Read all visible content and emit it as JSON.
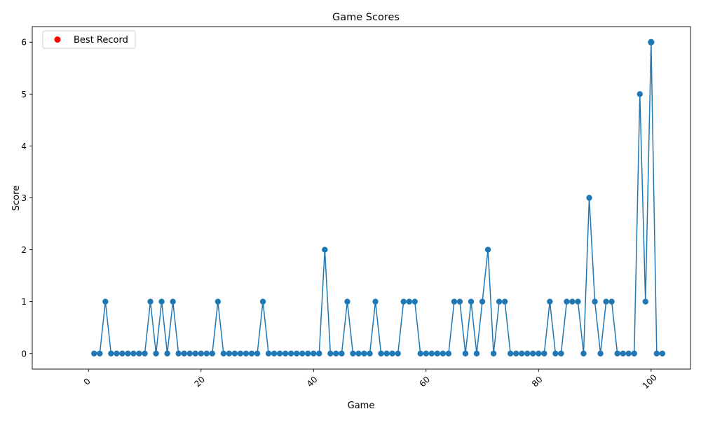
{
  "chart_data": {
    "type": "line",
    "title": "Game Scores",
    "xlabel": "Game",
    "ylabel": "Score",
    "xlim": [
      -10,
      107
    ],
    "ylim": [
      -0.3,
      6.3
    ],
    "x_ticks": [
      0,
      20,
      40,
      60,
      80,
      100
    ],
    "x_tick_labels": [
      "0",
      "20",
      "40",
      "60",
      "80",
      "100"
    ],
    "y_ticks": [
      0,
      1,
      2,
      3,
      4,
      5,
      6
    ],
    "y_tick_labels": [
      "0",
      "1",
      "2",
      "3",
      "4",
      "5",
      "6"
    ],
    "grid": false,
    "legend": {
      "placement": "top-left",
      "entries": [
        "Best Record"
      ]
    },
    "colors": {
      "series": "#1f77b4",
      "best_record": "#ff0000"
    },
    "series": [
      {
        "x": [
          1,
          2,
          3,
          4,
          5,
          6,
          7,
          8,
          9,
          10,
          11,
          12,
          13,
          14,
          15,
          16,
          17,
          18,
          19,
          20,
          21,
          22,
          23,
          24,
          25,
          26,
          27,
          28,
          29,
          30,
          31,
          32,
          33,
          34,
          35,
          36,
          37,
          38,
          39,
          40,
          41,
          42,
          43,
          44,
          45,
          46,
          47,
          48,
          49,
          50,
          51,
          52,
          53,
          54,
          55,
          56,
          57,
          58,
          59,
          60,
          61,
          62,
          63,
          64,
          65,
          66,
          67,
          68,
          69,
          70,
          71,
          72,
          73,
          74,
          75,
          76,
          77,
          78,
          79,
          80,
          81,
          82,
          83,
          84,
          85,
          86,
          87,
          88,
          89,
          90,
          91,
          92,
          93,
          94,
          95,
          96,
          97,
          98,
          99,
          100,
          101,
          102
        ],
        "values": [
          0,
          0,
          1,
          0,
          0,
          0,
          0,
          0,
          0,
          0,
          1,
          0,
          1,
          0,
          1,
          0,
          0,
          0,
          0,
          0,
          0,
          0,
          1,
          0,
          0,
          0,
          0,
          0,
          0,
          0,
          1,
          0,
          0,
          0,
          0,
          0,
          0,
          0,
          0,
          0,
          0,
          2,
          0,
          0,
          0,
          1,
          0,
          0,
          0,
          0,
          1,
          0,
          0,
          0,
          0,
          1,
          1,
          1,
          0,
          0,
          0,
          0,
          0,
          0,
          1,
          1,
          0,
          1,
          0,
          1,
          2,
          0,
          1,
          1,
          0,
          0,
          0,
          0,
          0,
          0,
          0,
          1,
          0,
          0,
          1,
          1,
          1,
          0,
          3,
          1,
          0,
          1,
          1,
          0,
          0,
          0,
          0,
          5,
          1,
          6,
          0,
          0
        ]
      },
      {
        "name": "Best Record",
        "x": [
          100
        ],
        "values": [
          6
        ]
      }
    ]
  }
}
